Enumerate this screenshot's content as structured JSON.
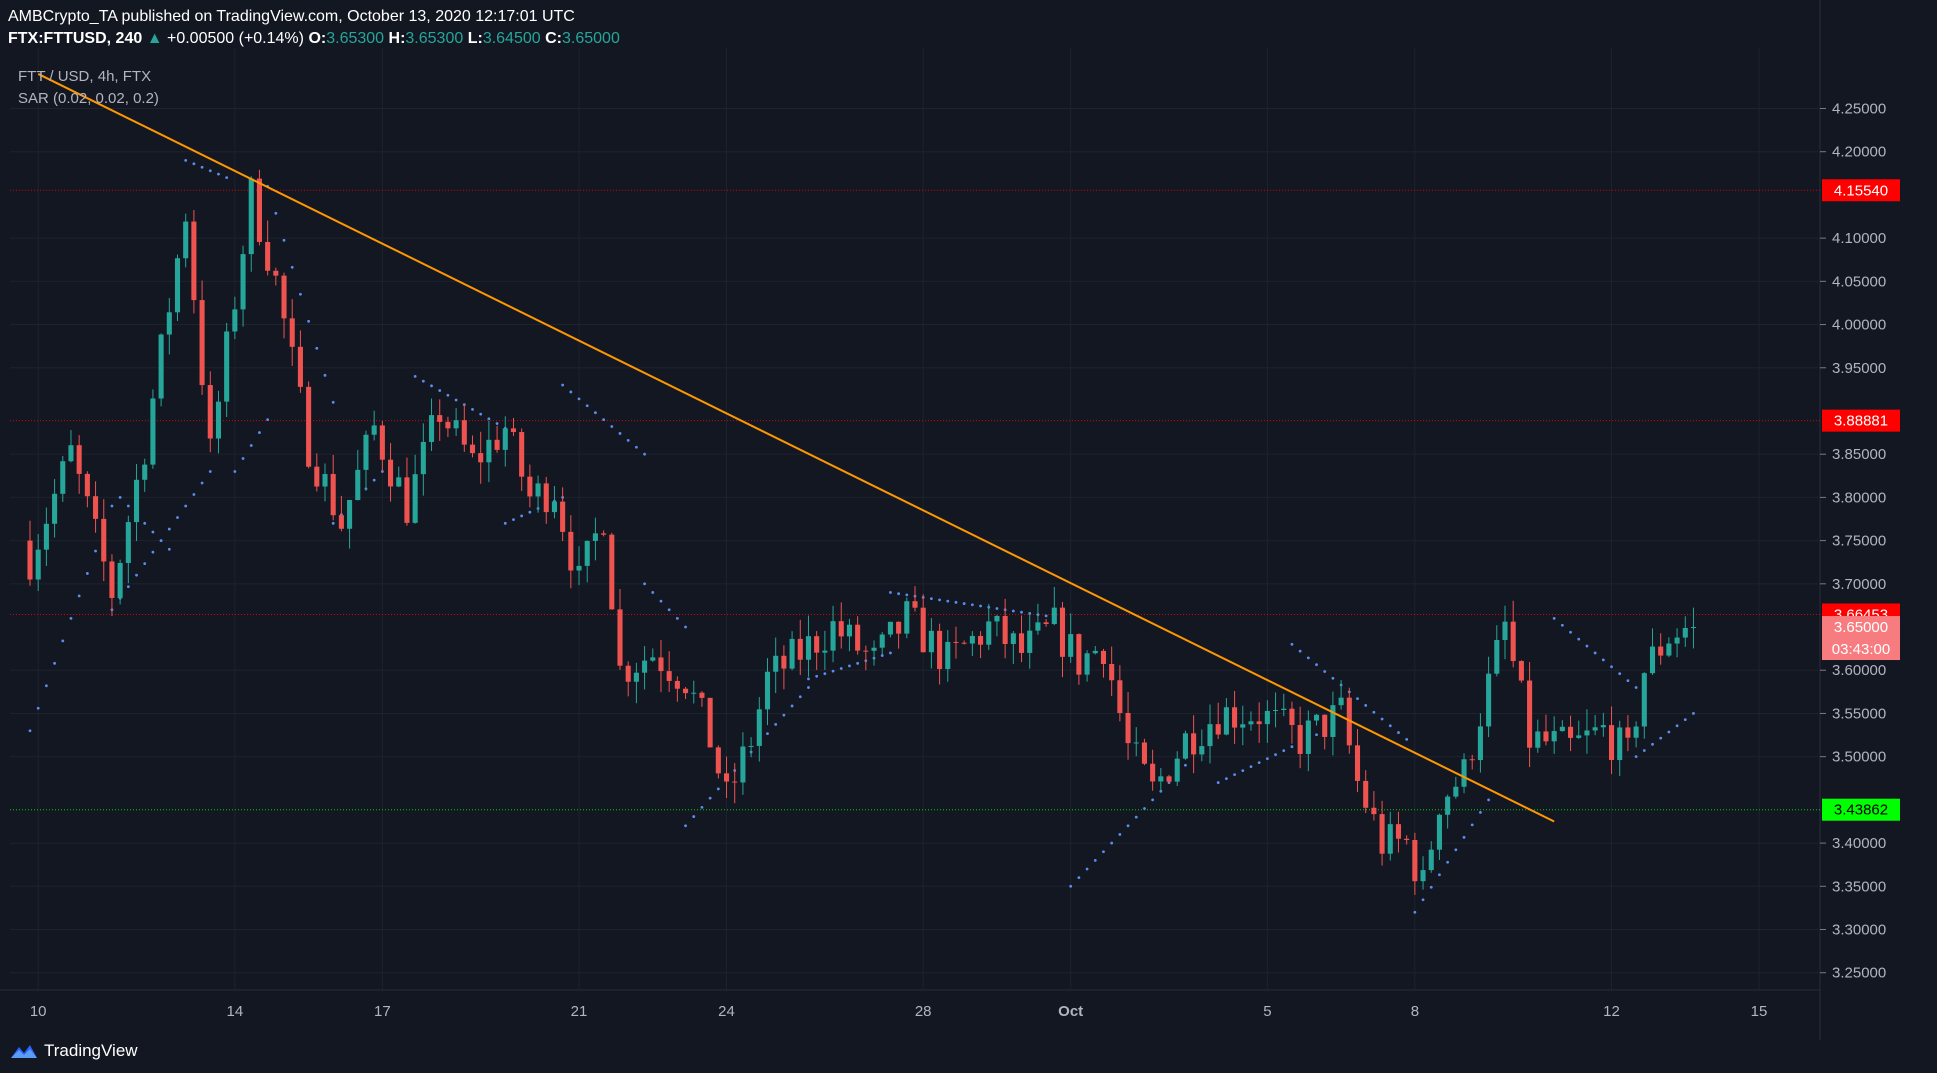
{
  "header": {
    "line1": "AMBCrypto_TA published on TradingView.com, October 13, 2020 12:17:01 UTC",
    "symbol": "FTX:FTTUSD, 240",
    "change": "+0.00500 (+0.14%)",
    "o_label": "O:",
    "o": "3.65300",
    "h_label": "H:",
    "h": "3.65300",
    "l_label": "L:",
    "l": "3.64500",
    "c_label": "C:",
    "c": "3.65000"
  },
  "legend": {
    "pair": "FTT / USD, 4h, FTX",
    "indicator": "SAR (0.02, 0.02, 0.2)"
  },
  "footer": {
    "brand": "TradingView"
  },
  "colors": {
    "background": "#131722",
    "up": "#26a69a",
    "down": "#ef5350",
    "trendline": "#ff9800",
    "sar": "#5b8def",
    "resistance": "#ff0000",
    "support": "#00ff00"
  },
  "chart_data": {
    "type": "candlestick",
    "symbol": "FTTUSD",
    "timeframe": "4h",
    "ylim": [
      3.23,
      4.32
    ],
    "y_ticks": [
      "4.25000",
      "4.20000",
      "4.10000",
      "4.05000",
      "4.00000",
      "3.95000",
      "3.85000",
      "3.80000",
      "3.75000",
      "3.70000",
      "3.60000",
      "3.55000",
      "3.50000",
      "3.40000",
      "3.35000",
      "3.30000",
      "3.25000"
    ],
    "x_ticks": [
      {
        "label": "10",
        "index": 1
      },
      {
        "label": "14",
        "index": 25
      },
      {
        "label": "17",
        "index": 43
      },
      {
        "label": "21",
        "index": 67
      },
      {
        "label": "24",
        "index": 85
      },
      {
        "label": "28",
        "index": 109
      },
      {
        "label": "Oct",
        "index": 127
      },
      {
        "label": "5",
        "index": 151
      },
      {
        "label": "8",
        "index": 169
      },
      {
        "label": "12",
        "index": 193
      },
      {
        "label": "15",
        "index": 211
      }
    ],
    "horizontal_lines": [
      {
        "value": 4.1554,
        "label": "4.15540",
        "role": "resistance"
      },
      {
        "value": 3.88881,
        "label": "3.88881",
        "role": "resistance"
      },
      {
        "value": 3.66453,
        "label": "3.66453",
        "role": "resistance"
      },
      {
        "value": 3.43862,
        "label": "3.43862",
        "role": "support"
      }
    ],
    "last_price": {
      "value": 3.65,
      "label": "3.65000",
      "countdown": "03:43:00"
    },
    "trendline": {
      "from": {
        "index": 1,
        "value": 4.29
      },
      "to": {
        "index": 186,
        "value": 3.425
      }
    },
    "anchors": [
      [
        0,
        3.73
      ],
      [
        5,
        3.85
      ],
      [
        10,
        3.69
      ],
      [
        14,
        3.86
      ],
      [
        19,
        4.13
      ],
      [
        22,
        3.85
      ],
      [
        27,
        4.15
      ],
      [
        30,
        4.05
      ],
      [
        34,
        3.86
      ],
      [
        38,
        3.77
      ],
      [
        42,
        3.88
      ],
      [
        46,
        3.79
      ],
      [
        50,
        3.9
      ],
      [
        54,
        3.84
      ],
      [
        58,
        3.88
      ],
      [
        61,
        3.8
      ],
      [
        64,
        3.81
      ],
      [
        67,
        3.7
      ],
      [
        70,
        3.78
      ],
      [
        72,
        3.6
      ],
      [
        76,
        3.62
      ],
      [
        80,
        3.59
      ],
      [
        83,
        3.52
      ],
      [
        85,
        3.45
      ],
      [
        88,
        3.52
      ],
      [
        90,
        3.59
      ],
      [
        94,
        3.62
      ],
      [
        98,
        3.65
      ],
      [
        103,
        3.61
      ],
      [
        107,
        3.66
      ],
      [
        112,
        3.61
      ],
      [
        117,
        3.65
      ],
      [
        121,
        3.62
      ],
      [
        125,
        3.65
      ],
      [
        128,
        3.61
      ],
      [
        131,
        3.63
      ],
      [
        134,
        3.51
      ],
      [
        137,
        3.46
      ],
      [
        141,
        3.52
      ],
      [
        145,
        3.55
      ],
      [
        150,
        3.55
      ],
      [
        155,
        3.52
      ],
      [
        160,
        3.55
      ],
      [
        162,
        3.47
      ],
      [
        165,
        3.4
      ],
      [
        168,
        3.4
      ],
      [
        170,
        3.35
      ],
      [
        172,
        3.45
      ],
      [
        175,
        3.48
      ],
      [
        177,
        3.55
      ],
      [
        180,
        3.65
      ],
      [
        183,
        3.52
      ],
      [
        188,
        3.51
      ],
      [
        192,
        3.53
      ],
      [
        195,
        3.5
      ],
      [
        197,
        3.6
      ],
      [
        200,
        3.64
      ],
      [
        203,
        3.653
      ]
    ],
    "sar_segments": [
      {
        "from": [
          0,
          3.53
        ],
        "to": [
          10,
          3.79
        ],
        "side": "below"
      },
      {
        "from": [
          11,
          3.8
        ],
        "to": [
          17,
          3.74
        ],
        "side": "above"
      },
      {
        "from": [
          10,
          3.67
        ],
        "to": [
          22,
          3.83
        ],
        "side": "below"
      },
      {
        "from": [
          19,
          4.19
        ],
        "to": [
          24,
          4.17
        ],
        "side": "above"
      },
      {
        "from": [
          25,
          3.83
        ],
        "to": [
          29,
          3.89
        ],
        "side": "below"
      },
      {
        "from": [
          29,
          4.16
        ],
        "to": [
          37,
          3.91
        ],
        "side": "above"
      },
      {
        "from": [
          37,
          3.77
        ],
        "to": [
          44,
          3.84
        ],
        "side": "below"
      },
      {
        "from": [
          47,
          3.94
        ],
        "to": [
          58,
          3.88
        ],
        "side": "above"
      },
      {
        "from": [
          58,
          3.77
        ],
        "to": [
          65,
          3.8
        ],
        "side": "below"
      },
      {
        "from": [
          65,
          3.93
        ],
        "to": [
          75,
          3.85
        ],
        "side": "above"
      },
      {
        "from": [
          75,
          3.7
        ],
        "to": [
          80,
          3.65
        ],
        "side": "above"
      },
      {
        "from": [
          80,
          3.42
        ],
        "to": [
          95,
          3.58
        ],
        "side": "below"
      },
      {
        "from": [
          95,
          3.59
        ],
        "to": [
          105,
          3.62
        ],
        "side": "below"
      },
      {
        "from": [
          105,
          3.69
        ],
        "to": [
          126,
          3.66
        ],
        "side": "above"
      },
      {
        "from": [
          127,
          3.35
        ],
        "to": [
          141,
          3.49
        ],
        "side": "below"
      },
      {
        "from": [
          145,
          3.47
        ],
        "to": [
          158,
          3.53
        ],
        "side": "below"
      },
      {
        "from": [
          154,
          3.63
        ],
        "to": [
          168,
          3.52
        ],
        "side": "above"
      },
      {
        "from": [
          169,
          3.32
        ],
        "to": [
          178,
          3.45
        ],
        "side": "below"
      },
      {
        "from": [
          186,
          3.66
        ],
        "to": [
          196,
          3.58
        ],
        "side": "above"
      },
      {
        "from": [
          196,
          3.5
        ],
        "to": [
          203,
          3.55
        ],
        "side": "below"
      }
    ]
  }
}
